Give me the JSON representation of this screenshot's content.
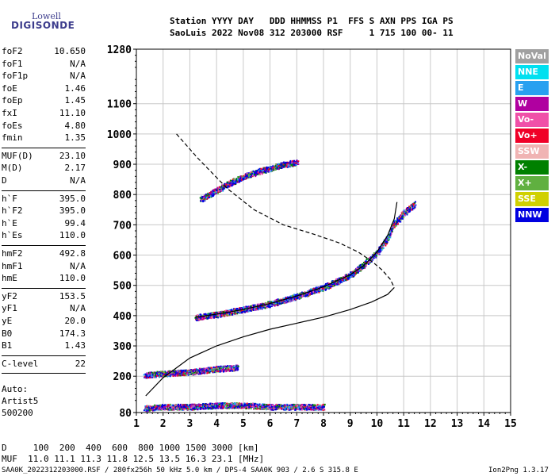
{
  "logo": {
    "top": "Lowell",
    "main": "DIGISONDE"
  },
  "header": {
    "line1": "Station YYYY DAY   DDD HHMMSS P1  FFS S AXN PPS IGA PS",
    "line2": "SaoLuis 2022 Nov08 312 203000 RSF     1 715 100 00- 11"
  },
  "params": [
    {
      "k": "foF2",
      "v": "10.650"
    },
    {
      "k": "foF1",
      "v": "N/A"
    },
    {
      "k": "foF1p",
      "v": "N/A"
    },
    {
      "k": "foE",
      "v": "1.46"
    },
    {
      "k": "foEp",
      "v": "1.45"
    },
    {
      "k": "fxI",
      "v": "11.10"
    },
    {
      "k": "foEs",
      "v": "4.80"
    },
    {
      "k": "fmin",
      "v": "1.35"
    },
    {
      "k": "MUF(D)",
      "v": "23.10"
    },
    {
      "k": "M(D)",
      "v": "2.17"
    },
    {
      "k": "D",
      "v": "N/A"
    },
    {
      "k": "h`F",
      "v": "395.0"
    },
    {
      "k": "h`F2",
      "v": "395.0"
    },
    {
      "k": "h`E",
      "v": "99.4"
    },
    {
      "k": "h`Es",
      "v": "110.0"
    },
    {
      "k": "hmF2",
      "v": "492.8"
    },
    {
      "k": "hmF1",
      "v": "N/A"
    },
    {
      "k": "hmE",
      "v": "110.0"
    },
    {
      "k": "yF2",
      "v": "153.5"
    },
    {
      "k": "yF1",
      "v": "N/A"
    },
    {
      "k": "yE",
      "v": "20.0"
    },
    {
      "k": "B0",
      "v": "174.3"
    },
    {
      "k": "B1",
      "v": "1.43"
    },
    {
      "k": "C-level",
      "v": "22"
    }
  ],
  "autoscaling": {
    "label": "Auto:",
    "program": "Artist5",
    "version": "500200"
  },
  "legend": [
    {
      "label": "NoVal",
      "color": "#a0a0a0"
    },
    {
      "label": "NNE",
      "color": "#00e0f0"
    },
    {
      "label": "E",
      "color": "#28a0f0"
    },
    {
      "label": "W",
      "color": "#b000a0"
    },
    {
      "label": "Vo-",
      "color": "#f050a8"
    },
    {
      "label": "Vo+",
      "color": "#f00028"
    },
    {
      "label": "SSW",
      "color": "#f0b4b4"
    },
    {
      "label": "X-",
      "color": "#008000"
    },
    {
      "label": "X+",
      "color": "#60b040"
    },
    {
      "label": "SSE",
      "color": "#d0d000"
    },
    {
      "label": "NNW",
      "color": "#0000e0"
    }
  ],
  "footer": {
    "distance_line": "D     100  200  400  600  800 1000 1500 3000 [km]",
    "muf_line": "MUF  11.0 11.1 11.3 11.8 12.5 13.5 16.3 23.1 [MHz]",
    "file_line": "SAA0K_2022312203000.RSF / 280fx256h 50 kHz 5.0 km / DPS-4 SAA0K 903 / 2.6 S 315.8 E",
    "version": "Ion2Png 1.3.17"
  },
  "chart_data": {
    "type": "scatter",
    "xlim": [
      1,
      15
    ],
    "ylim": [
      80,
      1280
    ],
    "x_ticks": [
      "1",
      "2",
      "3",
      "4",
      "5",
      "6",
      "7",
      "8",
      "9",
      "10",
      "11",
      "12",
      "13",
      "14",
      "15"
    ],
    "y_ticks": [
      "80",
      "200",
      "300",
      "400",
      "500",
      "600",
      "700",
      "800",
      "900",
      "1000",
      "1100",
      "1280"
    ],
    "grid": true,
    "series": [
      {
        "name": "profile_dashed",
        "style": "dashed",
        "color": "#000000",
        "points": [
          [
            2.5,
            1000
          ],
          [
            3.3,
            920
          ],
          [
            4.4,
            820
          ],
          [
            5.4,
            750
          ],
          [
            6.5,
            700
          ],
          [
            7.6,
            670
          ],
          [
            8.6,
            640
          ],
          [
            9.3,
            610
          ],
          [
            9.8,
            580
          ],
          [
            10.2,
            550
          ],
          [
            10.5,
            520
          ],
          [
            10.65,
            493
          ]
        ]
      },
      {
        "name": "profile_solid",
        "style": "solid",
        "color": "#000000",
        "points": [
          [
            1.35,
            135
          ],
          [
            2.0,
            195
          ],
          [
            3.0,
            260
          ],
          [
            4.0,
            300
          ],
          [
            5.0,
            330
          ],
          [
            6.0,
            355
          ],
          [
            7.0,
            375
          ],
          [
            8.0,
            395
          ],
          [
            9.0,
            420
          ],
          [
            9.8,
            445
          ],
          [
            10.4,
            470
          ],
          [
            10.65,
            493
          ]
        ]
      },
      {
        "name": "trace_model",
        "style": "solid",
        "color": "#000000",
        "points": [
          [
            3.2,
            395
          ],
          [
            4.0,
            405
          ],
          [
            5.0,
            420
          ],
          [
            6.0,
            440
          ],
          [
            7.0,
            465
          ],
          [
            8.0,
            495
          ],
          [
            9.0,
            535
          ],
          [
            9.5,
            565
          ],
          [
            10.0,
            610
          ],
          [
            10.4,
            665
          ],
          [
            10.65,
            720
          ],
          [
            10.75,
            775
          ]
        ]
      }
    ],
    "echo_traces": [
      {
        "name": "F2 trace",
        "points": [
          [
            3.2,
            395
          ],
          [
            4.0,
            405
          ],
          [
            5.0,
            422
          ],
          [
            6.0,
            440
          ],
          [
            7.0,
            465
          ],
          [
            8.0,
            495
          ],
          [
            9.0,
            535
          ],
          [
            9.5,
            570
          ],
          [
            10.0,
            610
          ],
          [
            10.4,
            660
          ],
          [
            10.65,
            710
          ]
        ]
      },
      {
        "name": "F2 upper",
        "points": [
          [
            3.4,
            785
          ],
          [
            4.0,
            815
          ],
          [
            4.5,
            840
          ],
          [
            5.0,
            860
          ],
          [
            5.5,
            875
          ],
          [
            6.0,
            888
          ],
          [
            6.5,
            900
          ],
          [
            7.0,
            908
          ]
        ]
      },
      {
        "name": "F2 tail",
        "points": [
          [
            10.6,
            700
          ],
          [
            11.0,
            740
          ],
          [
            11.4,
            770
          ]
        ]
      },
      {
        "name": "Es",
        "points": [
          [
            1.3,
            205
          ],
          [
            2.0,
            210
          ],
          [
            3.0,
            215
          ],
          [
            4.0,
            225
          ],
          [
            4.8,
            230
          ]
        ]
      },
      {
        "name": "E low",
        "points": [
          [
            1.3,
            95
          ],
          [
            2.0,
            100
          ],
          [
            3.0,
            100
          ],
          [
            4.0,
            105
          ],
          [
            5.0,
            105
          ],
          [
            6.0,
            100
          ],
          [
            7.0,
            100
          ],
          [
            8.0,
            100
          ]
        ]
      }
    ]
  }
}
